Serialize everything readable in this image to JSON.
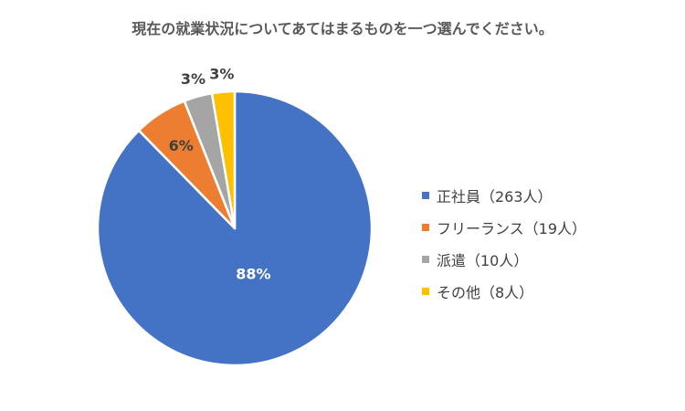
{
  "chart_data": {
    "type": "pie",
    "title": "現在の就業状況についてあてはまるものを一つ選んでください。",
    "slices": [
      {
        "label": "正社員（263人）",
        "value": 263,
        "percent_label": "88%",
        "color": "#4472C4"
      },
      {
        "label": "フリーランス（19人）",
        "value": 19,
        "percent_label": "6%",
        "color": "#ED7D31"
      },
      {
        "label": "派遣（10人）",
        "value": 10,
        "percent_label": "3%",
        "color": "#A5A5A5"
      },
      {
        "label": "その他（8人）",
        "value": 8,
        "percent_label": "3%",
        "color": "#FFC000"
      }
    ],
    "legend_position": "right"
  }
}
